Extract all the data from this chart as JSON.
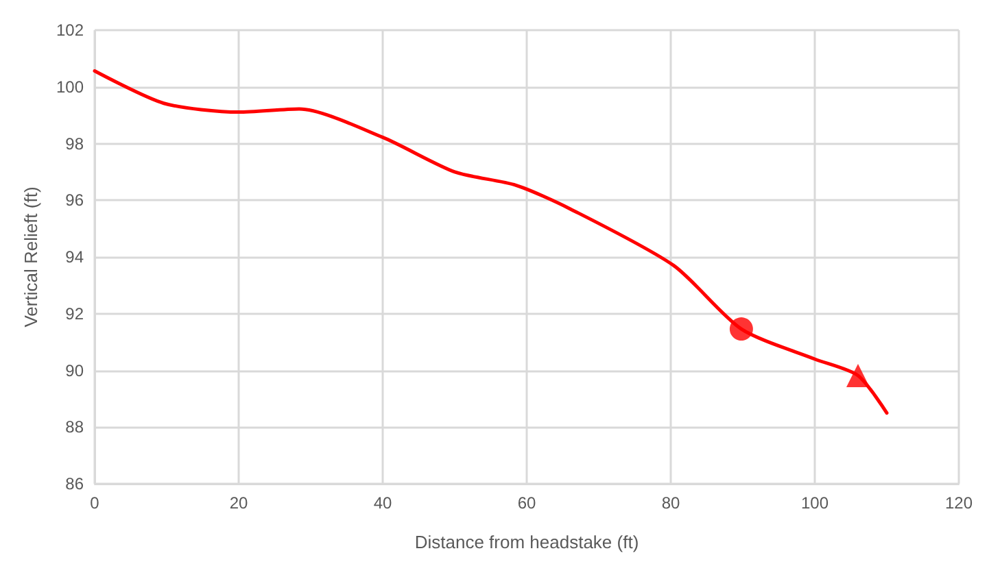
{
  "chart_data": {
    "type": "line",
    "xlabel": "Distance from headstake (ft)",
    "ylabel": "Vertical Relieft (ft)",
    "xlim": [
      0,
      120
    ],
    "xticks": [
      0,
      20,
      40,
      60,
      80,
      100,
      120
    ],
    "ylim": [
      86,
      102
    ],
    "yticks": [
      86,
      88,
      90,
      92,
      94,
      96,
      98,
      100,
      102
    ],
    "grid": true,
    "series": [
      {
        "color": "#ff0000",
        "marker": "none",
        "x": [
          0,
          9.6,
          20,
          28.4,
          40,
          50,
          58.5,
          66,
          80.4,
          89.8,
          100,
          106,
          110
        ],
        "values": [
          100.56,
          99.42,
          99.11,
          99.22,
          98.22,
          97.0,
          96.53,
          95.7,
          93.7,
          91.46,
          90.4,
          89.82,
          88.5
        ]
      },
      {
        "type": "scatter",
        "color": "#ff0000",
        "marker": "circle",
        "x": [
          89.8
        ],
        "values": [
          91.46
        ]
      },
      {
        "type": "scatter",
        "color": "#ff0000",
        "marker": "triangle",
        "x": [
          106
        ],
        "values": [
          89.82
        ]
      }
    ]
  }
}
